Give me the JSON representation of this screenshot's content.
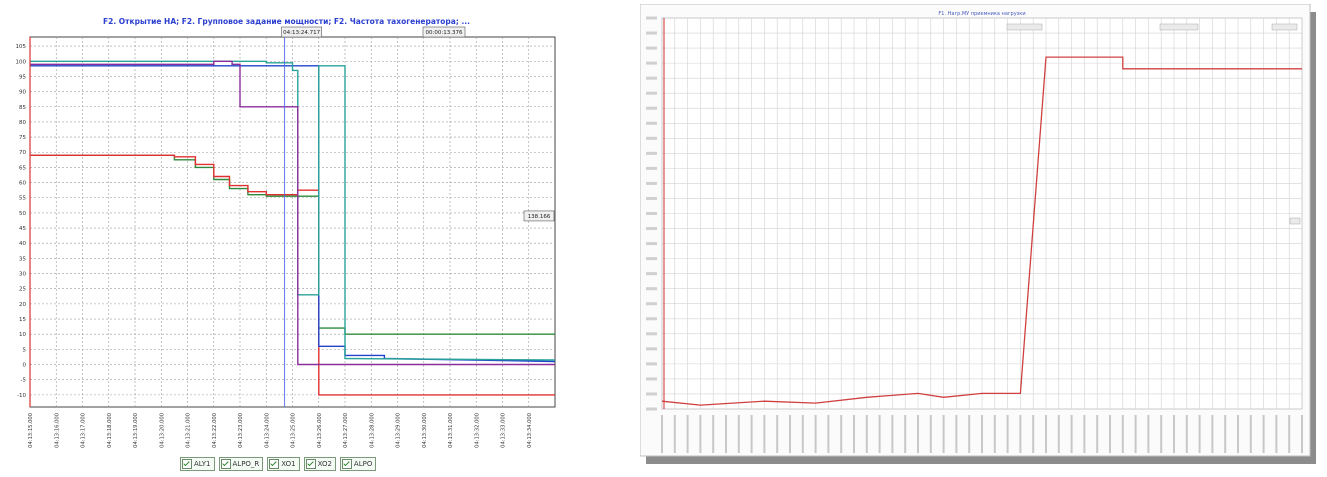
{
  "charts": [
    {
      "title": "F2. Открытие НА; F2. Групповое задание мощности; F2. Частота тахогенератора; ...",
      "cursor_time": "04:13:24.717",
      "delta_time": "00:00:13.376",
      "cursor_value": "138.166",
      "legend": [
        "ALY1",
        "ALPO_R",
        "XO1",
        "XO2",
        "ALPO"
      ]
    },
    {
      "title": "F1. Нагр.МУ приемника нагрузки"
    }
  ],
  "chart_data": [
    {
      "type": "line",
      "title": "F2. Открытие НА; F2. Групповое задание мощности; F2. Частота тахогенератора; ...",
      "x_ticks": [
        "04:13:15.000",
        "04:13:16.000",
        "04:13:17.000",
        "04:13:18.000",
        "04:13:19.000",
        "04:13:20.000",
        "04:13:21.000",
        "04:13:22.000",
        "04:13:23.000",
        "04:13:24.000",
        "04:13:25.000",
        "04:13:26.000",
        "04:13:27.000",
        "04:13:28.000",
        "04:13:29.000",
        "04:13:30.000",
        "04:13:31.000",
        "04:13:32.000",
        "04:13:33.000",
        "04:13:34.000"
      ],
      "xlim": [
        0,
        20
      ],
      "y_ticks": [
        105,
        100,
        95,
        90,
        85,
        80,
        75,
        70,
        65,
        60,
        55,
        50,
        45,
        40,
        35,
        30,
        25,
        20,
        15,
        10,
        5,
        0,
        -5,
        -10
      ],
      "ylim": [
        -14,
        108
      ],
      "grid": true,
      "legend_position": "bottom",
      "series": [
        {
          "name": "ALY1",
          "color": "#2e8b3e",
          "points": [
            [
              0,
              69
            ],
            [
              5.5,
              69
            ],
            [
              5.5,
              67.5
            ],
            [
              6.3,
              67.5
            ],
            [
              6.3,
              65
            ],
            [
              7,
              65
            ],
            [
              7,
              61
            ],
            [
              7.6,
              61
            ],
            [
              7.6,
              58
            ],
            [
              8.3,
              58
            ],
            [
              8.3,
              56
            ],
            [
              9,
              56
            ],
            [
              9,
              55.5
            ],
            [
              11,
              55.5
            ],
            [
              11,
              12
            ],
            [
              12,
              12
            ],
            [
              12,
              10
            ],
            [
              20,
              10
            ]
          ]
        },
        {
          "name": "ALPO_R",
          "color": "#e03030",
          "points": [
            [
              0,
              69
            ],
            [
              5.5,
              69
            ],
            [
              5.5,
              68.5
            ],
            [
              6.3,
              68.5
            ],
            [
              6.3,
              66
            ],
            [
              7,
              66
            ],
            [
              7,
              62
            ],
            [
              7.6,
              62
            ],
            [
              7.6,
              59
            ],
            [
              8.3,
              59
            ],
            [
              8.3,
              57
            ],
            [
              9,
              57
            ],
            [
              9,
              56
            ],
            [
              10.2,
              56
            ],
            [
              10.2,
              57.5
            ],
            [
              11,
              57.5
            ],
            [
              11,
              -10
            ],
            [
              20,
              -10
            ]
          ]
        },
        {
          "name": "XO1",
          "color": "#2244cc",
          "points": [
            [
              0,
              98.5
            ],
            [
              11,
              98.5
            ],
            [
              11,
              6
            ],
            [
              12,
              6
            ],
            [
              12,
              3
            ],
            [
              13.5,
              3
            ],
            [
              13.5,
              2
            ],
            [
              20,
              1
            ]
          ]
        },
        {
          "name": "XO2",
          "color": "#2aa39a",
          "points": [
            [
              0,
              100
            ],
            [
              9,
              100
            ],
            [
              9,
              99.5
            ],
            [
              10,
              99.5
            ],
            [
              10,
              97
            ],
            [
              10.2,
              97
            ],
            [
              10.2,
              23
            ],
            [
              11,
              23
            ],
            [
              11,
              98.5
            ],
            [
              12,
              98.5
            ],
            [
              12,
              2
            ],
            [
              20,
              1.5
            ]
          ]
        },
        {
          "name": "ALPO",
          "color": "#8a2f9a",
          "points": [
            [
              0,
              99
            ],
            [
              7,
              99
            ],
            [
              7,
              100
            ],
            [
              7.7,
              100
            ],
            [
              7.7,
              99
            ],
            [
              8,
              99
            ],
            [
              8,
              85
            ],
            [
              10.2,
              85
            ],
            [
              10.2,
              0
            ],
            [
              20,
              0
            ]
          ]
        }
      ],
      "vertical_line_x": 9.7
    },
    {
      "type": "line",
      "title": "F1. Нагр.МУ приемника нагрузки",
      "ylim": [
        0,
        100
      ],
      "grid": true,
      "series": [
        {
          "color": "#d04040",
          "points": [
            [
              0,
              2
            ],
            [
              3,
              1
            ],
            [
              8,
              2
            ],
            [
              12,
              1.5
            ],
            [
              16,
              3
            ],
            [
              20,
              4
            ],
            [
              22,
              3
            ],
            [
              25,
              4
            ],
            [
              28,
              4
            ],
            [
              30,
              90
            ],
            [
              36,
              90
            ],
            [
              36,
              87
            ],
            [
              50,
              87
            ]
          ]
        }
      ]
    }
  ]
}
